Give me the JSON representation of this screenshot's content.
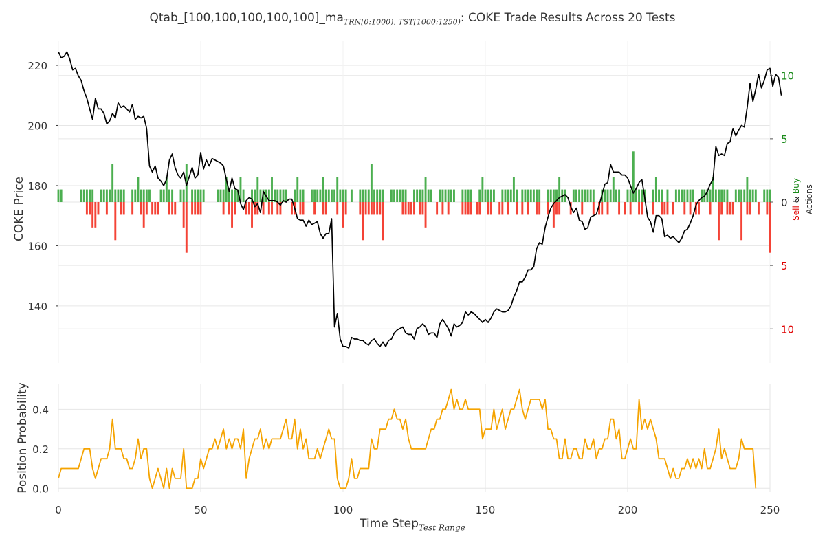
{
  "chart_data": [
    {
      "type": "line+bar",
      "title_main": "Qtab_[100,100,100,100,100]_ma",
      "title_subscript": "TRN[0:1000), TST[1000:1250)",
      "title_suffix": ": COKE Trade Results Across 20 Tests",
      "ylabel": "COKE Price",
      "ylabel_right_parts": [
        "Sell",
        "&",
        "Buy",
        "Actions"
      ],
      "colors": {
        "price": "#000000",
        "buy": "#4caf50",
        "sell": "#f44336",
        "buy_tick": "#1a8a1a",
        "sell_tick": "#e00000",
        "grid": "#e6e6e6"
      },
      "xlim": [
        0,
        250
      ],
      "ylim": [
        121,
        228
      ],
      "yticks": [
        140,
        160,
        180,
        200,
        220
      ],
      "actions_ylim": [
        -12.7,
        12.7
      ],
      "actions_yticks": [
        {
          "value": 10,
          "label": "10",
          "side": "buy"
        },
        {
          "value": 5,
          "label": "5",
          "side": "buy"
        },
        {
          "value": 0,
          "label": "0",
          "side": "zero"
        },
        {
          "value": -5,
          "label": "5",
          "side": "sell"
        },
        {
          "value": -10,
          "label": "10",
          "side": "sell"
        }
      ],
      "price_x_start": 0,
      "price": [
        224.5,
        222.5,
        223,
        224.5,
        222,
        218.5,
        219,
        216.5,
        215,
        211.5,
        209,
        205.5,
        202,
        209,
        205.5,
        205.5,
        204,
        200.5,
        201.5,
        204,
        202.5,
        207.5,
        206,
        206.5,
        205.5,
        204.5,
        207,
        202,
        203,
        202.5,
        203,
        199,
        186.5,
        184.5,
        186.5,
        182.5,
        181.5,
        180,
        182,
        188.5,
        190.5,
        186,
        183.5,
        182.5,
        184.5,
        180,
        183,
        186,
        182.5,
        183.5,
        191,
        185.5,
        188.5,
        186.5,
        189,
        188.5,
        188,
        187.5,
        186.5,
        182,
        178,
        182.5,
        179,
        178.5,
        174,
        172,
        175,
        176,
        175.5,
        173,
        174,
        171,
        178,
        176.5,
        175,
        175,
        175,
        174.5,
        173.5,
        175,
        174.5,
        175.5,
        175.5,
        172.5,
        169,
        168.5,
        168.5,
        166.5,
        168.5,
        167,
        167.5,
        168,
        164,
        162.5,
        164,
        164,
        169,
        133,
        137.5,
        129,
        126.5,
        126.5,
        126,
        129.5,
        129,
        129,
        128.5,
        128.5,
        127.5,
        127,
        128.5,
        129,
        127.5,
        126.5,
        128,
        126.5,
        128.5,
        129,
        131,
        132,
        132.5,
        133,
        131,
        130.5,
        130.5,
        129,
        132.5,
        133,
        134,
        133,
        130.5,
        131,
        131,
        129.5,
        134,
        135.5,
        134,
        132.5,
        130,
        134,
        133,
        133.5,
        134.5,
        138,
        137,
        138,
        137.5,
        136.5,
        135.5,
        134.5,
        135.5,
        134.5,
        136,
        138,
        139,
        138.5,
        138,
        138,
        138.5,
        140,
        143,
        145,
        148,
        148,
        149.5,
        152,
        152,
        153,
        159,
        161,
        160.5,
        166,
        169.5,
        172.5,
        174,
        175,
        176,
        176.5,
        177,
        176,
        173,
        171,
        172.5,
        168.5,
        168,
        165.5,
        166,
        169.5,
        170,
        170.5,
        173.5,
        177,
        180.5,
        181,
        187,
        184.5,
        184.5,
        184.5,
        183.5,
        183.5,
        182.5,
        180,
        177.5,
        179,
        181,
        182,
        176,
        169.5,
        168,
        164.5,
        170,
        170,
        169,
        163,
        163.5,
        162.5,
        163,
        162,
        161,
        162.5,
        165,
        165.5,
        167.5,
        170,
        173.5,
        175,
        176,
        176.5,
        178,
        180.5,
        182,
        193,
        190,
        190.5,
        190,
        194,
        194.5,
        199,
        196.5,
        198.5,
        200,
        199.5,
        206,
        214,
        208,
        212,
        217,
        212.5,
        215,
        218.5,
        219,
        213,
        217,
        216,
        210
      ],
      "actions_x_start": 0,
      "buy": [
        1,
        1,
        0,
        0,
        0,
        0,
        0,
        0,
        1,
        1,
        1,
        1,
        1,
        0,
        0,
        1,
        1,
        1,
        1,
        3,
        1,
        1,
        1,
        1,
        0,
        0,
        1,
        1,
        2,
        1,
        1,
        1,
        1,
        0,
        0,
        0,
        1,
        1,
        2,
        1,
        1,
        0,
        0,
        1,
        1,
        3,
        0,
        1,
        1,
        1,
        1,
        1,
        0,
        0,
        0,
        0,
        1,
        1,
        1,
        2,
        1,
        1,
        1,
        1,
        2,
        1,
        0,
        0,
        1,
        1,
        2,
        1,
        1,
        1,
        1,
        2,
        1,
        1,
        1,
        1,
        1,
        0,
        0,
        1,
        2,
        1,
        1,
        0,
        0,
        1,
        1,
        1,
        1,
        2,
        1,
        1,
        1,
        1,
        2,
        1,
        1,
        1,
        0,
        1,
        0,
        0,
        1,
        1,
        1,
        1,
        3,
        1,
        1,
        1,
        1,
        0,
        0,
        1,
        1,
        1,
        1,
        1,
        1,
        0,
        0,
        1,
        1,
        1,
        1,
        2,
        1,
        1,
        0,
        0,
        1,
        1,
        1,
        1,
        1,
        1,
        0,
        0,
        1,
        1,
        1,
        1,
        0,
        0,
        1,
        2,
        1,
        1,
        1,
        1,
        0,
        0,
        1,
        1,
        1,
        1,
        2,
        1,
        0,
        1,
        1,
        1,
        1,
        1,
        1,
        1,
        0,
        0,
        1,
        1,
        1,
        1,
        2,
        1,
        1,
        0,
        0,
        1,
        1,
        1,
        1,
        1,
        1,
        1,
        1,
        0,
        0,
        1,
        1,
        1,
        1,
        2,
        1,
        1,
        0,
        0,
        1,
        1,
        4,
        1,
        1,
        1,
        1,
        0,
        0,
        1,
        2,
        1,
        1,
        0,
        1,
        0,
        0,
        1,
        1,
        1,
        1,
        1,
        1,
        1,
        0,
        0,
        1,
        1,
        1,
        1,
        2,
        1,
        1,
        1,
        1,
        1,
        0,
        0,
        1,
        1,
        1,
        1,
        2,
        1,
        1,
        1,
        0,
        0,
        1,
        1,
        1
      ],
      "sell": [
        0,
        0,
        0,
        0,
        0,
        0,
        0,
        0,
        0,
        0,
        1,
        1,
        2,
        2,
        1,
        0,
        0,
        1,
        0,
        0,
        3,
        0,
        1,
        1,
        0,
        0,
        1,
        0,
        0,
        1,
        2,
        1,
        0,
        1,
        1,
        1,
        0,
        0,
        0,
        1,
        1,
        1,
        0,
        0,
        2,
        4,
        0,
        1,
        1,
        1,
        1,
        0,
        0,
        0,
        0,
        0,
        0,
        0,
        1,
        0,
        1,
        2,
        1,
        0,
        0,
        0,
        1,
        1,
        2,
        1,
        1,
        0,
        1,
        0,
        1,
        1,
        0,
        1,
        1,
        0,
        0,
        0,
        1,
        1,
        0,
        1,
        1,
        0,
        0,
        0,
        1,
        0,
        0,
        1,
        1,
        0,
        0,
        0,
        1,
        0,
        2,
        1,
        0,
        0,
        0,
        0,
        1,
        3,
        1,
        1,
        1,
        1,
        1,
        1,
        3,
        0,
        0,
        0,
        0,
        0,
        0,
        1,
        1,
        1,
        1,
        1,
        0,
        1,
        1,
        2,
        0,
        0,
        0,
        1,
        0,
        1,
        0,
        1,
        0,
        0,
        0,
        0,
        1,
        1,
        1,
        1,
        0,
        1,
        1,
        0,
        0,
        1,
        1,
        0,
        0,
        1,
        1,
        0,
        1,
        0,
        0,
        1,
        0,
        1,
        0,
        1,
        0,
        0,
        1,
        1,
        0,
        0,
        1,
        0,
        2,
        1,
        1,
        0,
        0,
        0,
        1,
        0,
        0,
        0,
        1,
        0,
        0,
        0,
        1,
        0,
        1,
        1,
        0,
        1,
        0,
        0,
        0,
        1,
        0,
        1,
        0,
        1,
        0,
        0,
        1,
        1,
        0,
        0,
        0,
        1,
        0,
        0,
        1,
        1,
        1,
        0,
        1,
        0,
        0,
        0,
        1,
        0,
        1,
        0,
        1,
        1,
        0,
        0,
        0,
        1,
        0,
        0,
        3,
        1,
        0,
        1,
        1,
        1,
        0,
        0,
        3,
        0,
        1,
        1,
        0,
        0,
        1,
        0,
        0,
        1,
        4
      ]
    },
    {
      "type": "line",
      "ylabel": "Position Probability",
      "xlabel_main": "Time Step",
      "xlabel_subscript": "Test Range",
      "colors": {
        "line": "#f5a300",
        "grid": "#e6e6e6"
      },
      "xlim": [
        0,
        250
      ],
      "xticks": [
        0,
        50,
        100,
        150,
        200,
        250
      ],
      "ylim": [
        -0.02,
        0.53
      ],
      "yticks": [
        {
          "value": 0.0,
          "label": "0.0"
        },
        {
          "value": 0.2,
          "label": "0.2"
        },
        {
          "value": 0.4,
          "label": "0.4"
        }
      ],
      "x_start": 0,
      "values": [
        0.05,
        0.1,
        0.1,
        0.1,
        0.1,
        0.1,
        0.1,
        0.1,
        0.15,
        0.2,
        0.2,
        0.2,
        0.1,
        0.05,
        0.1,
        0.15,
        0.15,
        0.15,
        0.2,
        0.35,
        0.2,
        0.2,
        0.2,
        0.15,
        0.15,
        0.1,
        0.1,
        0.15,
        0.25,
        0.15,
        0.2,
        0.2,
        0.05,
        0.0,
        0.05,
        0.1,
        0.05,
        0.0,
        0.1,
        0.0,
        0.1,
        0.05,
        0.05,
        0.05,
        0.2,
        0.0,
        0.0,
        0.0,
        0.05,
        0.05,
        0.15,
        0.1,
        0.15,
        0.2,
        0.2,
        0.25,
        0.2,
        0.25,
        0.3,
        0.2,
        0.25,
        0.2,
        0.25,
        0.25,
        0.2,
        0.3,
        0.05,
        0.15,
        0.2,
        0.25,
        0.25,
        0.3,
        0.2,
        0.25,
        0.2,
        0.25,
        0.25,
        0.25,
        0.25,
        0.3,
        0.35,
        0.25,
        0.25,
        0.35,
        0.2,
        0.3,
        0.2,
        0.25,
        0.15,
        0.15,
        0.15,
        0.2,
        0.15,
        0.2,
        0.25,
        0.3,
        0.25,
        0.25,
        0.05,
        0.0,
        0.0,
        0.0,
        0.05,
        0.15,
        0.05,
        0.05,
        0.1,
        0.1,
        0.1,
        0.1,
        0.25,
        0.2,
        0.2,
        0.3,
        0.3,
        0.3,
        0.35,
        0.35,
        0.4,
        0.35,
        0.35,
        0.3,
        0.35,
        0.25,
        0.2,
        0.2,
        0.2,
        0.2,
        0.2,
        0.2,
        0.25,
        0.3,
        0.3,
        0.35,
        0.35,
        0.4,
        0.4,
        0.45,
        0.5,
        0.4,
        0.45,
        0.4,
        0.4,
        0.45,
        0.4,
        0.4,
        0.4,
        0.4,
        0.4,
        0.25,
        0.3,
        0.3,
        0.3,
        0.4,
        0.3,
        0.35,
        0.4,
        0.3,
        0.35,
        0.4,
        0.4,
        0.45,
        0.5,
        0.4,
        0.35,
        0.4,
        0.45,
        0.45,
        0.45,
        0.45,
        0.4,
        0.45,
        0.3,
        0.3,
        0.25,
        0.25,
        0.15,
        0.15,
        0.25,
        0.15,
        0.15,
        0.2,
        0.2,
        0.15,
        0.15,
        0.25,
        0.2,
        0.2,
        0.25,
        0.15,
        0.2,
        0.2,
        0.25,
        0.25,
        0.35,
        0.35,
        0.25,
        0.3,
        0.15,
        0.15,
        0.2,
        0.25,
        0.2,
        0.2,
        0.45,
        0.3,
        0.35,
        0.3,
        0.35,
        0.3,
        0.25,
        0.15,
        0.15,
        0.15,
        0.1,
        0.05,
        0.1,
        0.05,
        0.05,
        0.1,
        0.1,
        0.15,
        0.1,
        0.15,
        0.1,
        0.15,
        0.1,
        0.2,
        0.1,
        0.1,
        0.15,
        0.2,
        0.3,
        0.15,
        0.2,
        0.15,
        0.1,
        0.1,
        0.1,
        0.15,
        0.25,
        0.2,
        0.2,
        0.2,
        0.2,
        0.0
      ]
    }
  ]
}
